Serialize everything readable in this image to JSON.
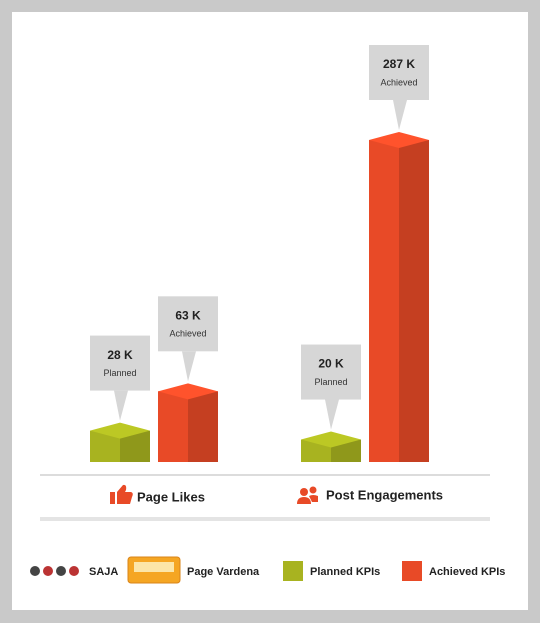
{
  "chart_data": {
    "type": "bar3d",
    "categories": [
      "Page Likes",
      "Post Engagements"
    ],
    "series": [
      {
        "name": "Planned KPIs",
        "tag": "Planned",
        "color": "#a8b320",
        "values": [
          28,
          20
        ],
        "value_labels": [
          "28 K",
          "20 K"
        ]
      },
      {
        "name": "Achieved KPIs",
        "tag": "Achieved",
        "color": "#e84a27",
        "values": [
          63,
          287
        ],
        "value_labels": [
          "63 K",
          "287 K"
        ]
      }
    ],
    "brands": [
      "SAJA",
      "Page Vardena"
    ]
  }
}
